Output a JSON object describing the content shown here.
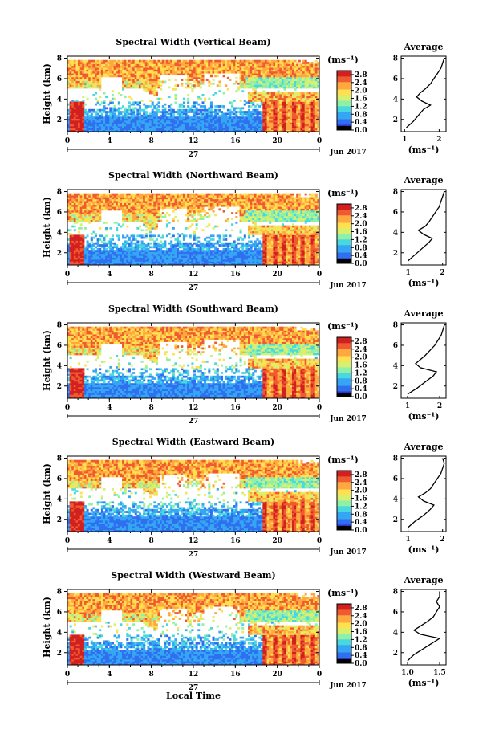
{
  "figure": {
    "time_axis_label": "Local Time",
    "date_major_label": "27",
    "date_label": "Jun 2017",
    "height_label": "Height (km)",
    "colorbar_unit": "(ms⁻¹)",
    "average_title": "Average",
    "average_xlabel": "(ms⁻¹)",
    "colormap": [
      "#000000",
      "#3030d0",
      "#2f6ff0",
      "#35a6f4",
      "#49d8e0",
      "#8ff0a8",
      "#d8f070",
      "#ffe050",
      "#ffa840",
      "#f05a30",
      "#d02020"
    ]
  },
  "chart_data": [
    {
      "type": "heatmap",
      "title": "Spectral Width (Vertical Beam)",
      "x_ticks": [
        "0",
        "4",
        "8",
        "12",
        "16",
        "20",
        "0"
      ],
      "y_ticks": [
        "2",
        "4",
        "6",
        "8"
      ],
      "xlim": [
        0,
        24
      ],
      "ylim": [
        0.8,
        8.2
      ],
      "colorbar_ticks": [
        "0.0",
        "0.4",
        "0.8",
        "1.2",
        "1.6",
        "2.0",
        "2.4",
        "2.8"
      ],
      "colorbar_range": [
        0,
        3.0
      ],
      "average": {
        "x_ticks": [
          "1",
          "2"
        ],
        "xlim": [
          0.9,
          2.2
        ],
        "y_ticks": [
          "2",
          "4",
          "6",
          "8"
        ],
        "height": [
          1.2,
          1.8,
          2.4,
          3.0,
          3.4,
          3.8,
          4.2,
          4.6,
          5.0,
          5.5,
          6.0,
          6.5,
          7.0,
          7.5,
          8.0
        ],
        "value": [
          1.05,
          1.25,
          1.4,
          1.55,
          1.75,
          1.5,
          1.35,
          1.45,
          1.6,
          1.75,
          1.85,
          1.95,
          2.05,
          2.1,
          2.15
        ]
      }
    },
    {
      "type": "heatmap",
      "title": "Spectral Width (Northward Beam)",
      "x_ticks": [
        "0",
        "4",
        "8",
        "12",
        "16",
        "20",
        "0"
      ],
      "y_ticks": [
        "2",
        "4",
        "6",
        "8"
      ],
      "xlim": [
        0,
        24
      ],
      "ylim": [
        0.8,
        8.2
      ],
      "colorbar_ticks": [
        "0.0",
        "0.4",
        "0.8",
        "1.2",
        "1.6",
        "2.0",
        "2.4",
        "2.8"
      ],
      "colorbar_range": [
        0,
        3.0
      ],
      "average": {
        "x_ticks": [
          "1",
          "2"
        ],
        "xlim": [
          0.8,
          2.1
        ],
        "y_ticks": [
          "2",
          "4",
          "6",
          "8"
        ],
        "height": [
          1.2,
          1.8,
          2.4,
          3.0,
          3.4,
          3.8,
          4.2,
          4.6,
          5.0,
          5.5,
          6.0,
          6.5,
          7.0,
          7.5,
          8.0
        ],
        "value": [
          1.0,
          1.2,
          1.4,
          1.6,
          1.7,
          1.45,
          1.3,
          1.5,
          1.6,
          1.7,
          1.8,
          1.9,
          1.95,
          2.0,
          2.05
        ]
      }
    },
    {
      "type": "heatmap",
      "title": "Spectral Width (Southward Beam)",
      "x_ticks": [
        "0",
        "4",
        "8",
        "12",
        "16",
        "20",
        "0"
      ],
      "y_ticks": [
        "2",
        "4",
        "6",
        "8"
      ],
      "xlim": [
        0,
        24
      ],
      "ylim": [
        0.8,
        8.2
      ],
      "colorbar_ticks": [
        "0.0",
        "0.4",
        "0.8",
        "1.2",
        "1.6",
        "2.0",
        "2.4",
        "2.8"
      ],
      "colorbar_range": [
        0,
        3.0
      ],
      "average": {
        "x_ticks": [
          "1",
          "2"
        ],
        "xlim": [
          0.8,
          2.2
        ],
        "y_ticks": [
          "2",
          "4",
          "6",
          "8"
        ],
        "height": [
          1.2,
          1.8,
          2.4,
          3.0,
          3.4,
          3.8,
          4.2,
          4.6,
          5.0,
          5.5,
          6.0,
          6.5,
          7.0,
          7.5,
          8.0
        ],
        "value": [
          1.0,
          1.3,
          1.55,
          1.8,
          1.9,
          1.4,
          1.25,
          1.4,
          1.55,
          1.7,
          1.85,
          1.95,
          2.05,
          2.1,
          2.15
        ]
      }
    },
    {
      "type": "heatmap",
      "title": "Spectral Width (Eastward Beam)",
      "x_ticks": [
        "0",
        "4",
        "8",
        "12",
        "16",
        "20",
        "0"
      ],
      "y_ticks": [
        "2",
        "4",
        "6",
        "8"
      ],
      "xlim": [
        0,
        24
      ],
      "ylim": [
        0.8,
        8.2
      ],
      "colorbar_ticks": [
        "0.0",
        "0.4",
        "0.8",
        "1.2",
        "1.6",
        "2.0",
        "2.4",
        "2.8"
      ],
      "colorbar_range": [
        0,
        3.0
      ],
      "average": {
        "x_ticks": [
          "1",
          "2"
        ],
        "xlim": [
          0.8,
          2.1
        ],
        "y_ticks": [
          "2",
          "4",
          "6",
          "8"
        ],
        "height": [
          1.2,
          1.8,
          2.4,
          3.0,
          3.4,
          3.8,
          4.2,
          4.6,
          5.0,
          5.5,
          6.0,
          6.5,
          7.0,
          7.5,
          8.0
        ],
        "value": [
          1.0,
          1.2,
          1.45,
          1.65,
          1.75,
          1.45,
          1.3,
          1.5,
          1.65,
          1.75,
          1.85,
          1.95,
          2.0,
          2.05,
          2.0
        ]
      }
    },
    {
      "type": "heatmap",
      "title": "Spectral Width (Westward Beam)",
      "x_ticks": [
        "0",
        "4",
        "8",
        "12",
        "16",
        "20",
        "0"
      ],
      "y_ticks": [
        "2",
        "4",
        "6",
        "8"
      ],
      "xlim": [
        0,
        24
      ],
      "ylim": [
        0.8,
        8.2
      ],
      "colorbar_ticks": [
        "0.0",
        "0.4",
        "0.8",
        "1.2",
        "1.6",
        "2.0",
        "2.4",
        "2.8"
      ],
      "colorbar_range": [
        0,
        3.0
      ],
      "average": {
        "x_ticks": [
          "1.0",
          "1.5"
        ],
        "xlim": [
          0.9,
          1.6
        ],
        "y_ticks": [
          "2",
          "4",
          "6",
          "8"
        ],
        "height": [
          1.2,
          1.8,
          2.4,
          3.0,
          3.4,
          3.8,
          4.2,
          4.6,
          5.0,
          5.5,
          6.0,
          6.5,
          7.0,
          7.5,
          8.0
        ],
        "value": [
          1.0,
          1.1,
          1.25,
          1.4,
          1.5,
          1.2,
          1.1,
          1.2,
          1.3,
          1.4,
          1.45,
          1.5,
          1.45,
          1.5,
          1.5
        ]
      }
    }
  ]
}
